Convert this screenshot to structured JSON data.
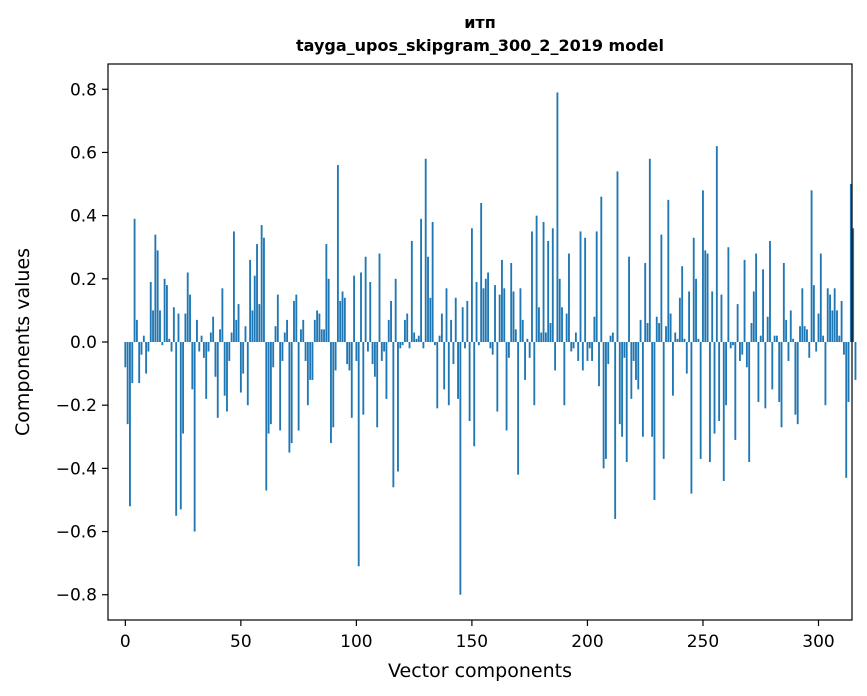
{
  "chart_data": {
    "type": "bar",
    "title": "итп",
    "subtitle": "tayga_upos_skipgram_300_2_2019 model",
    "xlabel": "Vector components",
    "ylabel": "Components values",
    "xlim": [
      -7.5,
      314.5
    ],
    "ylim": [
      -0.88,
      0.88
    ],
    "xticks": [
      0,
      50,
      100,
      150,
      200,
      250,
      300
    ],
    "xtick_labels": [
      "0",
      "50",
      "100",
      "150",
      "200",
      "250",
      "300"
    ],
    "yticks": [
      0.8,
      0.6,
      0.4,
      0.2,
      0.0,
      -0.2,
      -0.4,
      -0.6,
      -0.8
    ],
    "ytick_labels": [
      "0.8",
      "0.6",
      "0.4",
      "0.2",
      "0.0",
      "−0.2",
      "−0.4",
      "−0.6",
      "−0.8"
    ],
    "grid": false,
    "bar_color": "#1f77b4",
    "values": [
      -0.08,
      -0.26,
      -0.52,
      -0.13,
      0.39,
      0.07,
      -0.13,
      -0.04,
      0.02,
      -0.1,
      -0.03,
      0.19,
      0.1,
      0.34,
      0.29,
      0.1,
      -0.01,
      0.2,
      0.18,
      0.01,
      -0.03,
      0.11,
      -0.55,
      0.09,
      -0.53,
      -0.29,
      0.09,
      0.22,
      0.15,
      -0.15,
      -0.6,
      0.07,
      -0.03,
      0.02,
      -0.05,
      -0.18,
      -0.03,
      0.03,
      0.08,
      -0.11,
      -0.24,
      0.04,
      0.17,
      -0.17,
      -0.22,
      -0.06,
      0.03,
      0.35,
      0.07,
      0.12,
      -0.16,
      -0.1,
      0.05,
      -0.2,
      0.26,
      0.1,
      0.21,
      0.31,
      0.12,
      0.37,
      0.33,
      -0.47,
      -0.29,
      -0.26,
      -0.08,
      0.05,
      0.15,
      -0.28,
      -0.06,
      0.03,
      0.07,
      -0.35,
      -0.32,
      0.13,
      0.15,
      -0.28,
      0.04,
      0.07,
      -0.06,
      -0.2,
      -0.12,
      -0.12,
      0.07,
      0.1,
      0.09,
      0.04,
      0.04,
      0.31,
      0.2,
      -0.32,
      -0.27,
      -0.09,
      0.56,
      0.13,
      0.16,
      0.14,
      -0.07,
      -0.09,
      -0.24,
      0.21,
      -0.06,
      -0.71,
      0.22,
      -0.23,
      0.27,
      -0.03,
      0.19,
      -0.07,
      -0.11,
      -0.27,
      0.28,
      -0.06,
      -0.03,
      -0.18,
      0.07,
      0.13,
      -0.46,
      0.2,
      -0.41,
      -0.02,
      -0.01,
      0.07,
      0.09,
      -0.02,
      0.32,
      0.03,
      0.01,
      0.02,
      0.39,
      -0.02,
      0.58,
      0.27,
      0.14,
      0.38,
      -0.01,
      -0.21,
      0.02,
      0.09,
      -0.15,
      0.17,
      -0.2,
      0.07,
      -0.07,
      0.14,
      -0.18,
      -0.8,
      0.11,
      -0.02,
      0.13,
      -0.25,
      0.36,
      -0.33,
      0.19,
      -0.01,
      0.44,
      0.17,
      0.2,
      0.22,
      -0.02,
      -0.04,
      0.18,
      -0.22,
      0.15,
      0.26,
      0.17,
      -0.28,
      -0.05,
      0.25,
      0.16,
      0.04,
      -0.42,
      0.17,
      0.07,
      -0.12,
      0.01,
      -0.05,
      0.35,
      -0.2,
      0.4,
      0.11,
      0.03,
      0.38,
      0.03,
      0.32,
      0.06,
      0.36,
      -0.09,
      0.79,
      0.2,
      0.11,
      -0.2,
      0.09,
      0.28,
      -0.03,
      -0.02,
      0.03,
      -0.06,
      0.35,
      -0.09,
      0.33,
      -0.06,
      -0.02,
      -0.06,
      0.08,
      0.35,
      -0.14,
      0.46,
      -0.4,
      -0.37,
      -0.07,
      0.02,
      0.03,
      -0.56,
      0.54,
      -0.26,
      -0.3,
      -0.05,
      -0.38,
      0.27,
      -0.18,
      -0.06,
      -0.12,
      -0.15,
      0.07,
      -0.3,
      0.25,
      0.06,
      0.58,
      -0.3,
      -0.5,
      0.08,
      0.06,
      0.34,
      -0.37,
      0.05,
      0.45,
      0.09,
      -0.17,
      0.03,
      0.01,
      0.14,
      0.24,
      0.01,
      -0.1,
      0.16,
      -0.48,
      0.33,
      0.2,
      0.01,
      -0.37,
      0.48,
      0.29,
      0.28,
      -0.38,
      0.16,
      -0.29,
      0.62,
      -0.25,
      0.15,
      -0.44,
      -0.2,
      0.3,
      -0.02,
      -0.01,
      -0.31,
      0.12,
      -0.06,
      -0.04,
      0.26,
      -0.08,
      -0.38,
      0.06,
      0.16,
      0.28,
      -0.19,
      0.02,
      0.23,
      -0.21,
      0.08,
      0.32,
      -0.15,
      0.02,
      0.02,
      -0.19,
      -0.27,
      0.25,
      0.07,
      -0.06,
      0.1,
      0.01,
      -0.23,
      -0.26,
      0.05,
      0.17,
      0.05,
      0.04,
      -0.05,
      0.48,
      0.18,
      -0.03,
      0.09,
      0.28,
      0.02,
      -0.2,
      0.17,
      0.15,
      0.1,
      0.17,
      0.1,
      0.02,
      0.13,
      -0.04,
      -0.43,
      -0.19,
      0.5,
      0.36,
      -0.12
    ]
  }
}
